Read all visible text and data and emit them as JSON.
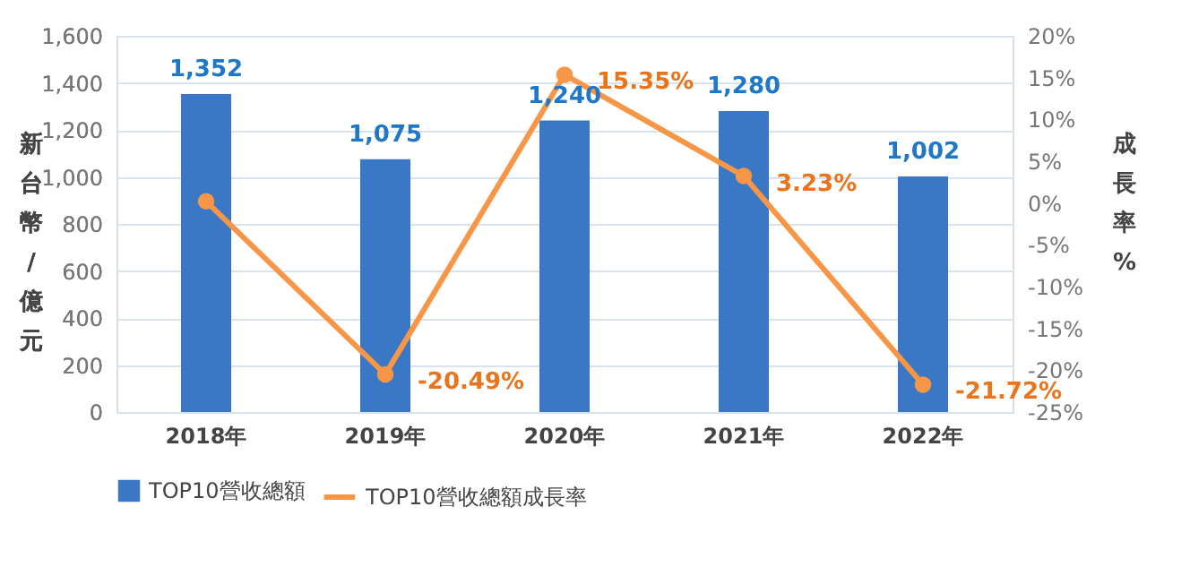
{
  "chart_data": {
    "type": "bar",
    "categories": [
      "2018年",
      "2019年",
      "2020年",
      "2021年",
      "2022年"
    ],
    "ylabel": "新台幣/億元",
    "y2label": "成長率%",
    "series": [
      {
        "name": "TOP10營收總額",
        "type": "bar",
        "color": "#3a78c5",
        "values": [
          1352,
          1075,
          1240,
          1280,
          1002
        ],
        "value_labels": [
          "1,352",
          "1,075",
          "1,240",
          "1,280",
          "1,002"
        ]
      },
      {
        "name": "TOP10營收總額成長率",
        "type": "line",
        "axis": "y2",
        "color": "#f79646",
        "marker": "circle",
        "values": [
          0.2,
          -20.49,
          15.35,
          3.23,
          -21.72
        ],
        "value_labels": [
          null,
          "-20.49%",
          "15.35%",
          "3.23%",
          "-21.72%"
        ]
      }
    ],
    "ylim": [
      0,
      1600
    ],
    "yticks": [
      {
        "value": 0,
        "label": "0"
      },
      {
        "value": 200,
        "label": "200"
      },
      {
        "value": 400,
        "label": "400"
      },
      {
        "value": 600,
        "label": "600"
      },
      {
        "value": 800,
        "label": "800"
      },
      {
        "value": 1000,
        "label": "1,000"
      },
      {
        "value": 1200,
        "label": "1,200"
      },
      {
        "value": 1400,
        "label": "1,400"
      },
      {
        "value": 1600,
        "label": "1,600"
      }
    ],
    "y2lim": [
      -25,
      20
    ],
    "y2ticks": [
      {
        "value": -25,
        "label": "-25%"
      },
      {
        "value": -20,
        "label": "-20%"
      },
      {
        "value": -15,
        "label": "-15%"
      },
      {
        "value": -10,
        "label": "-10%"
      },
      {
        "value": -5,
        "label": "-5%"
      },
      {
        "value": 0,
        "label": "0%"
      },
      {
        "value": 5,
        "label": "5%"
      },
      {
        "value": 10,
        "label": "10%"
      },
      {
        "value": 15,
        "label": "15%"
      },
      {
        "value": 20,
        "label": "20%"
      }
    ],
    "grid": "y",
    "legend": "bottom"
  }
}
